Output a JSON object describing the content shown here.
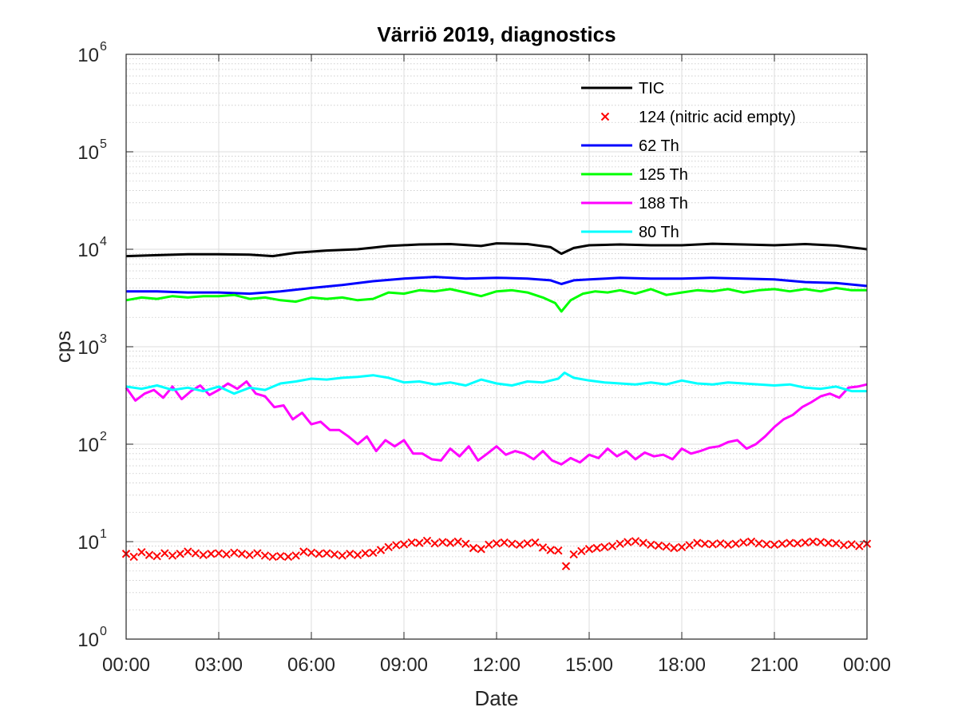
{
  "chart_data": {
    "type": "line",
    "title": "Värriö 2019, diagnostics",
    "xlabel": "Date",
    "ylabel": "cps",
    "yscale": "log",
    "ylim": [
      1,
      1000000
    ],
    "yticks": [
      {
        "value": 1,
        "base": "10",
        "exp": "0"
      },
      {
        "value": 10,
        "base": "10",
        "exp": "1"
      },
      {
        "value": 100,
        "base": "10",
        "exp": "2"
      },
      {
        "value": 1000,
        "base": "10",
        "exp": "3"
      },
      {
        "value": 10000,
        "base": "10",
        "exp": "4"
      },
      {
        "value": 100000,
        "base": "10",
        "exp": "5"
      },
      {
        "value": 1000000,
        "base": "10",
        "exp": "6"
      }
    ],
    "xlim_hours": [
      0,
      24
    ],
    "xticks": [
      "00:00",
      "03:00",
      "06:00",
      "09:00",
      "12:00",
      "15:00",
      "18:00",
      "21:00",
      "00:00"
    ],
    "grid": true,
    "legend_position": "top-right",
    "series": [
      {
        "name": "TIC",
        "style": "line",
        "color": "#000000",
        "x": [
          0,
          1,
          2,
          3,
          4,
          4.75,
          5.5,
          6.5,
          7.5,
          8.5,
          9.5,
          10.5,
          11.5,
          12,
          13,
          13.75,
          14.1,
          14.5,
          15,
          16,
          17,
          18,
          19,
          20,
          21,
          22,
          23,
          24
        ],
        "y": [
          8500,
          8700,
          8900,
          8900,
          8800,
          8500,
          9200,
          9700,
          10000,
          10800,
          11200,
          11300,
          10800,
          11500,
          11300,
          10500,
          9000,
          10300,
          11000,
          11200,
          11000,
          11000,
          11400,
          11200,
          11000,
          11300,
          10900,
          10000
        ]
      },
      {
        "name": "124 (nitric acid empty)",
        "style": "marker",
        "color": "#ff0000",
        "x": [
          0,
          0.25,
          0.5,
          0.75,
          1,
          1.25,
          1.5,
          1.75,
          2,
          2.25,
          2.5,
          2.75,
          3,
          3.25,
          3.5,
          3.75,
          4,
          4.25,
          4.5,
          4.75,
          5,
          5.25,
          5.5,
          5.75,
          6,
          6.25,
          6.5,
          6.75,
          7,
          7.25,
          7.5,
          7.75,
          8,
          8.25,
          8.5,
          8.75,
          9,
          9.25,
          9.5,
          9.75,
          10,
          10.25,
          10.5,
          10.75,
          11,
          11.25,
          11.5,
          11.75,
          12,
          12.25,
          12.5,
          12.75,
          13,
          13.25,
          13.5,
          13.75,
          14,
          14.25,
          14.5,
          14.75,
          15,
          15.25,
          15.5,
          15.75,
          16,
          16.25,
          16.5,
          16.75,
          17,
          17.25,
          17.5,
          17.75,
          18,
          18.25,
          18.5,
          18.75,
          19,
          19.25,
          19.5,
          19.75,
          20,
          20.25,
          20.5,
          20.75,
          21,
          21.25,
          21.5,
          21.75,
          22,
          22.25,
          22.5,
          22.75,
          23,
          23.25,
          23.5,
          23.75,
          24
        ],
        "y": [
          7.5,
          7.0,
          7.8,
          7.3,
          7.1,
          7.6,
          7.2,
          7.5,
          7.9,
          7.6,
          7.3,
          7.5,
          7.6,
          7.4,
          7.7,
          7.5,
          7.3,
          7.6,
          7.2,
          7.0,
          7.1,
          7.0,
          7.2,
          7.9,
          7.7,
          7.5,
          7.6,
          7.4,
          7.2,
          7.5,
          7.3,
          7.6,
          7.7,
          8.2,
          8.8,
          9.2,
          9.4,
          9.8,
          9.7,
          10.2,
          9.6,
          9.9,
          9.7,
          10.0,
          9.5,
          8.6,
          8.4,
          9.3,
          9.6,
          9.8,
          9.5,
          9.3,
          9.6,
          9.8,
          8.7,
          8.2,
          8.1,
          5.6,
          7.4,
          8.0,
          8.4,
          8.6,
          8.8,
          9.0,
          9.5,
          9.9,
          10.1,
          9.7,
          9.3,
          9.1,
          8.9,
          8.6,
          8.8,
          9.2,
          9.7,
          9.5,
          9.4,
          9.6,
          9.3,
          9.5,
          9.8,
          10.0,
          9.6,
          9.4,
          9.3,
          9.5,
          9.7,
          9.6,
          9.8,
          10.0,
          9.9,
          9.7,
          9.6,
          9.2,
          9.4,
          9.0,
          9.5
        ]
      },
      {
        "name": "62 Th",
        "style": "line",
        "color": "#0000ff",
        "x": [
          0,
          1,
          2,
          3,
          4,
          5,
          6,
          7,
          8,
          9,
          10,
          11,
          12,
          13,
          13.75,
          14.1,
          14.5,
          15,
          16,
          17,
          18,
          19,
          20,
          21,
          22,
          23,
          24
        ],
        "y": [
          3700,
          3700,
          3600,
          3600,
          3500,
          3700,
          4000,
          4300,
          4700,
          5000,
          5200,
          5000,
          5100,
          5000,
          4800,
          4400,
          4800,
          4900,
          5100,
          5000,
          5000,
          5100,
          5000,
          4900,
          4600,
          4500,
          4200
        ]
      },
      {
        "name": "125 Th",
        "style": "line",
        "color": "#00ff00",
        "x": [
          0,
          0.5,
          1,
          1.5,
          2,
          2.5,
          3,
          3.5,
          4,
          4.5,
          5,
          5.5,
          6,
          6.5,
          7,
          7.5,
          8,
          8.5,
          9,
          9.5,
          10,
          10.5,
          11,
          11.5,
          12,
          12.5,
          13,
          13.5,
          13.9,
          14.1,
          14.4,
          14.8,
          15.2,
          15.6,
          16,
          16.5,
          17,
          17.5,
          18,
          18.5,
          19,
          19.5,
          20,
          20.5,
          21,
          21.5,
          22,
          22.5,
          23,
          23.5,
          24
        ],
        "y": [
          3000,
          3200,
          3100,
          3300,
          3200,
          3300,
          3300,
          3400,
          3100,
          3200,
          3000,
          2900,
          3200,
          3100,
          3200,
          3000,
          3100,
          3600,
          3500,
          3800,
          3700,
          3900,
          3600,
          3300,
          3700,
          3800,
          3600,
          3200,
          2800,
          2300,
          3000,
          3500,
          3700,
          3600,
          3800,
          3500,
          3900,
          3400,
          3600,
          3800,
          3700,
          3900,
          3600,
          3800,
          3900,
          3700,
          3900,
          3700,
          4000,
          3800,
          3800
        ]
      },
      {
        "name": "188 Th",
        "style": "line",
        "color": "#ff00ff",
        "x": [
          0,
          0.3,
          0.6,
          0.9,
          1.2,
          1.5,
          1.8,
          2.1,
          2.4,
          2.7,
          3,
          3.3,
          3.6,
          3.9,
          4.2,
          4.5,
          4.8,
          5.1,
          5.4,
          5.7,
          6,
          6.3,
          6.6,
          6.9,
          7.2,
          7.5,
          7.8,
          8.1,
          8.4,
          8.7,
          9,
          9.3,
          9.6,
          9.9,
          10.2,
          10.5,
          10.8,
          11.1,
          11.4,
          11.7,
          12,
          12.3,
          12.6,
          12.9,
          13.2,
          13.5,
          13.8,
          14.1,
          14.4,
          14.7,
          15,
          15.3,
          15.6,
          15.9,
          16.2,
          16.5,
          16.8,
          17.1,
          17.4,
          17.7,
          18,
          18.3,
          18.6,
          18.9,
          19.2,
          19.5,
          19.8,
          20.1,
          20.4,
          20.7,
          21,
          21.3,
          21.6,
          21.9,
          22.2,
          22.5,
          22.8,
          23.1,
          23.4,
          23.7,
          24
        ],
        "y": [
          380,
          280,
          330,
          360,
          300,
          390,
          290,
          350,
          400,
          320,
          360,
          420,
          370,
          440,
          330,
          310,
          240,
          250,
          180,
          210,
          160,
          170,
          140,
          140,
          120,
          100,
          120,
          85,
          110,
          95,
          110,
          80,
          80,
          70,
          68,
          90,
          75,
          95,
          68,
          80,
          95,
          78,
          85,
          80,
          70,
          85,
          68,
          62,
          72,
          65,
          78,
          72,
          90,
          75,
          85,
          70,
          82,
          75,
          78,
          70,
          90,
          80,
          85,
          92,
          95,
          105,
          110,
          90,
          100,
          120,
          150,
          180,
          200,
          240,
          270,
          310,
          330,
          300,
          380,
          390,
          410
        ]
      },
      {
        "name": "80 Th",
        "style": "line",
        "color": "#00ffff",
        "x": [
          0,
          0.5,
          1,
          1.5,
          2,
          2.5,
          3,
          3.5,
          4,
          4.5,
          5,
          5.5,
          6,
          6.5,
          7,
          7.5,
          8,
          8.5,
          9,
          9.5,
          10,
          10.5,
          11,
          11.5,
          12,
          12.5,
          13,
          13.5,
          14,
          14.2,
          14.5,
          15,
          15.5,
          16,
          16.5,
          17,
          17.5,
          18,
          18.5,
          19,
          19.5,
          20,
          20.5,
          21,
          21.5,
          22,
          22.5,
          23,
          23.5,
          24
        ],
        "y": [
          390,
          370,
          400,
          360,
          380,
          350,
          390,
          330,
          380,
          360,
          420,
          440,
          470,
          460,
          480,
          490,
          510,
          480,
          430,
          440,
          410,
          430,
          400,
          460,
          420,
          400,
          440,
          430,
          470,
          540,
          480,
          450,
          430,
          420,
          410,
          430,
          410,
          450,
          420,
          410,
          430,
          420,
          410,
          400,
          410,
          380,
          370,
          390,
          350,
          350
        ]
      }
    ]
  }
}
